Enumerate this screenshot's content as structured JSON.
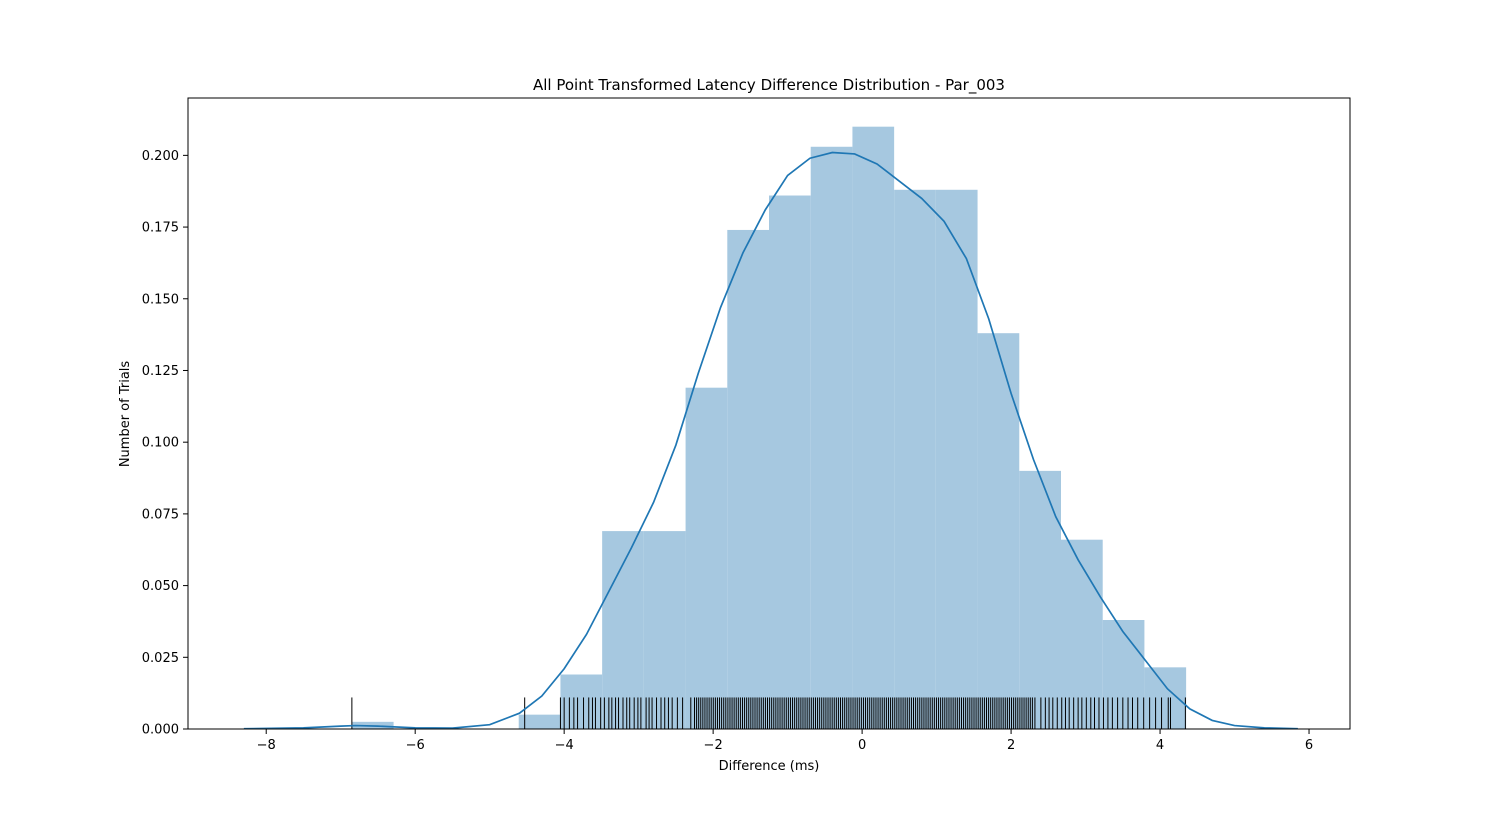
{
  "chart_data": {
    "type": "bar",
    "title": "All Point Transformed Latency Difference Distribution - Par_003",
    "xlabel": "Difference (ms)",
    "ylabel": "Number of Trials",
    "xlim": [
      -9.05,
      6.55
    ],
    "ylim": [
      0,
      0.22
    ],
    "x_ticks": [
      -8,
      -6,
      -4,
      -2,
      0,
      2,
      4,
      6
    ],
    "x_tick_labels": [
      "−8",
      "−6",
      "−4",
      "−2",
      "0",
      "2",
      "4",
      "6"
    ],
    "y_ticks": [
      0.0,
      0.025,
      0.05,
      0.075,
      0.1,
      0.125,
      0.15,
      0.175,
      0.2
    ],
    "y_tick_labels": [
      "0.000",
      "0.025",
      "0.050",
      "0.075",
      "0.100",
      "0.125",
      "0.150",
      "0.175",
      "0.200"
    ],
    "grid": false,
    "bar_color": "#a6c8e0",
    "line_color": "#1f77b4",
    "rug_color": "#000000",
    "histogram": {
      "bin_edges": [
        -6.85,
        -6.29,
        -5.73,
        -5.17,
        -4.61,
        -4.05,
        -3.49,
        -2.93,
        -2.37,
        -1.81,
        -1.25,
        -0.69,
        -0.13,
        0.43,
        0.99,
        1.55,
        2.11,
        2.67,
        3.23,
        3.79,
        4.35
      ],
      "values": [
        0.0025,
        0,
        0,
        0,
        0.005,
        0.019,
        0.069,
        0.069,
        0.119,
        0.174,
        0.186,
        0.203,
        0.21,
        0.188,
        0.188,
        0.138,
        0.09,
        0.066,
        0.038,
        0.0215
      ]
    },
    "kde": {
      "x": [
        -8.3,
        -7.5,
        -7.0,
        -6.8,
        -6.5,
        -6.0,
        -5.5,
        -5.0,
        -4.6,
        -4.3,
        -4.0,
        -3.7,
        -3.4,
        -3.1,
        -2.8,
        -2.5,
        -2.2,
        -1.9,
        -1.6,
        -1.3,
        -1.0,
        -0.7,
        -0.4,
        -0.1,
        0.2,
        0.5,
        0.8,
        1.1,
        1.4,
        1.7,
        2.0,
        2.3,
        2.6,
        2.9,
        3.2,
        3.5,
        3.8,
        4.1,
        4.4,
        4.7,
        5.0,
        5.4,
        5.85
      ],
      "y": [
        0.0001,
        0.0004,
        0.001,
        0.0012,
        0.001,
        0.0004,
        0.0003,
        0.0015,
        0.0055,
        0.0115,
        0.021,
        0.033,
        0.048,
        0.063,
        0.079,
        0.099,
        0.124,
        0.147,
        0.166,
        0.181,
        0.193,
        0.199,
        0.201,
        0.2005,
        0.197,
        0.191,
        0.185,
        0.177,
        0.164,
        0.143,
        0.117,
        0.094,
        0.074,
        0.059,
        0.046,
        0.034,
        0.024,
        0.014,
        0.007,
        0.003,
        0.0012,
        0.0004,
        0.0001
      ]
    },
    "rug": {
      "height": 0.011,
      "sparse_points": [
        -6.85,
        -4.53,
        -4.05,
        -4.0,
        -3.93,
        -3.87,
        -3.82,
        -3.74,
        -3.67,
        -3.62,
        -3.58,
        -3.51,
        -3.46,
        -3.4,
        -3.36,
        -3.31,
        -3.27,
        -3.21,
        -3.16,
        -3.12,
        -3.06,
        -3.01,
        -2.97,
        -2.9,
        -2.86,
        -2.82,
        -2.76,
        -2.7,
        -2.65,
        -2.6,
        -2.55,
        -2.48,
        -2.41,
        -2.3,
        2.32,
        2.4,
        2.46,
        2.51,
        2.56,
        2.62,
        2.68,
        2.73,
        2.78,
        2.84,
        2.9,
        2.95,
        3.01,
        3.07,
        3.12,
        3.18,
        3.24,
        3.3,
        3.36,
        3.43,
        3.5,
        3.57,
        3.63,
        3.7,
        3.78,
        3.86,
        3.94,
        4.02,
        4.11,
        4.14,
        4.34
      ],
      "dense_range": [
        -2.25,
        2.3
      ],
      "dense_step": 0.028
    }
  }
}
